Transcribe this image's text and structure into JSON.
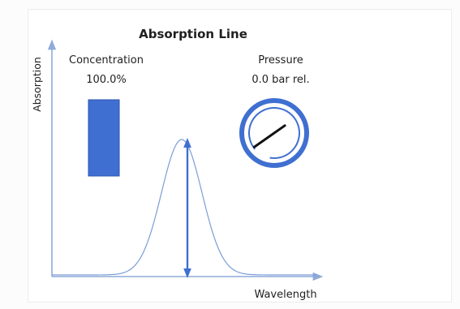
{
  "title": "Absorption Line",
  "axes": {
    "y_label": "Absorption",
    "x_label": "Wavelength"
  },
  "concentration": {
    "label": "Concentration",
    "value_text": "100.0%",
    "level": 1.0
  },
  "pressure": {
    "label": "Pressure",
    "value_text": "0.0 bar rel.",
    "value": 0.0
  },
  "colors": {
    "accent": "#3f6fd1",
    "axis": "#8fabd9",
    "peak_line": "#7c9cd8",
    "needle": "#111111",
    "text": "#1f1f1f"
  },
  "icons": {
    "gauge": "pressure-gauge-icon",
    "bar": "concentration-bar-icon",
    "arrow": "peak-height-arrow-icon"
  }
}
